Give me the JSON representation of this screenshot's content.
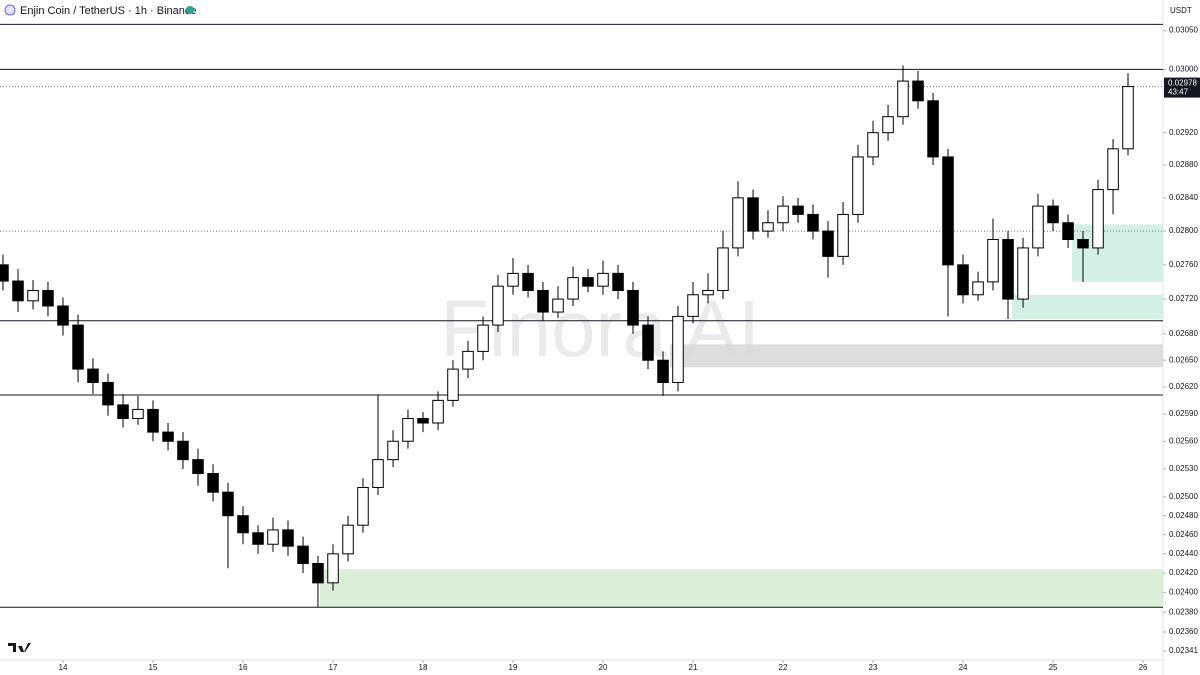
{
  "header": {
    "title": "Enjin Coin / TetherUS · 1h · Binance",
    "currency": "USDT",
    "watermark": "Finora AI"
  },
  "chart_data": {
    "type": "candlestick",
    "log_scale": true,
    "up_color": "#ffffff",
    "down_color": "#000000",
    "edge_color": "#000000",
    "xlim": [
      13.3,
      26.222
    ],
    "xticks": [
      14,
      15,
      16,
      17,
      18,
      19,
      20,
      21,
      22,
      23,
      24,
      25,
      26
    ],
    "ylim": [
      0.02332,
      0.0309
    ],
    "yticks": [
      {
        "value": 0.0305,
        "label": "0.03050"
      },
      {
        "value": 0.03,
        "label": "0.03000"
      },
      {
        "value": 0.0292,
        "label": "0.02920"
      },
      {
        "value": 0.0288,
        "label": "0.02880"
      },
      {
        "value": 0.0284,
        "label": "0.02840"
      },
      {
        "value": 0.028,
        "label": "0.02800"
      },
      {
        "value": 0.0276,
        "label": "0.02760"
      },
      {
        "value": 0.0272,
        "label": "0.02720"
      },
      {
        "value": 0.0268,
        "label": "0.02680"
      },
      {
        "value": 0.0265,
        "label": "0.02650"
      },
      {
        "value": 0.0262,
        "label": "0.02620"
      },
      {
        "value": 0.0259,
        "label": "0.02590"
      },
      {
        "value": 0.0256,
        "label": "0.02560"
      },
      {
        "value": 0.0253,
        "label": "0.02530"
      },
      {
        "value": 0.025,
        "label": "0.02500"
      },
      {
        "value": 0.0248,
        "label": "0.02480"
      },
      {
        "value": 0.0246,
        "label": "0.02460"
      },
      {
        "value": 0.0244,
        "label": "0.02440"
      },
      {
        "value": 0.0242,
        "label": "0.02420"
      },
      {
        "value": 0.024,
        "label": "0.02400"
      },
      {
        "value": 0.0238,
        "label": "0.02380"
      },
      {
        "value": 0.0236,
        "label": "0.02360"
      },
      {
        "value": 0.02341,
        "label": "0.02341"
      }
    ],
    "x": [
      13.333,
      13.5,
      13.667,
      13.833,
      14,
      14.167,
      14.333,
      14.5,
      14.667,
      14.833,
      15,
      15.167,
      15.333,
      15.5,
      15.667,
      15.833,
      16,
      16.167,
      16.333,
      16.5,
      16.667,
      16.833,
      17,
      17.167,
      17.333,
      17.5,
      17.667,
      17.833,
      18,
      18.167,
      18.333,
      18.5,
      18.667,
      18.833,
      19,
      19.167,
      19.333,
      19.5,
      19.667,
      19.833,
      20,
      20.167,
      20.333,
      20.5,
      20.667,
      20.833,
      21,
      21.167,
      21.333,
      21.5,
      21.667,
      21.833,
      22,
      22.167,
      22.333,
      22.5,
      22.667,
      22.833,
      23,
      23.167,
      23.333,
      23.5,
      23.667,
      23.833,
      24,
      24.167,
      24.333,
      24.5,
      24.667,
      24.833,
      25,
      25.167,
      25.333,
      25.5,
      25.667,
      25.833
    ],
    "open": [
      0.0276,
      0.02741,
      0.02718,
      0.0273,
      0.02712,
      0.0269,
      0.0264,
      0.02625,
      0.026,
      0.02585,
      0.02595,
      0.0257,
      0.0256,
      0.0254,
      0.02525,
      0.02505,
      0.0248,
      0.02462,
      0.0245,
      0.02465,
      0.02448,
      0.0243,
      0.0241,
      0.0244,
      0.0247,
      0.0251,
      0.0254,
      0.0256,
      0.02585,
      0.0258,
      0.02605,
      0.0264,
      0.0266,
      0.0269,
      0.02735,
      0.0275,
      0.0273,
      0.02705,
      0.0272,
      0.02745,
      0.02735,
      0.0275,
      0.0273,
      0.0269,
      0.0265,
      0.02625,
      0.027,
      0.02725,
      0.0273,
      0.0278,
      0.0284,
      0.028,
      0.0281,
      0.0283,
      0.0282,
      0.028,
      0.0277,
      0.0282,
      0.0289,
      0.0292,
      0.0294,
      0.02985,
      0.0296,
      0.0289,
      0.0276,
      0.02725,
      0.0274,
      0.0279,
      0.0272,
      0.0278,
      0.0283,
      0.0281,
      0.0279,
      0.0278,
      0.0285,
      0.029
    ],
    "high": [
      0.02772,
      0.02755,
      0.02742,
      0.0274,
      0.02722,
      0.02702,
      0.02652,
      0.02635,
      0.02612,
      0.0261,
      0.02605,
      0.0258,
      0.0257,
      0.02552,
      0.02535,
      0.02515,
      0.0249,
      0.0247,
      0.02478,
      0.02475,
      0.02458,
      0.02438,
      0.0245,
      0.0248,
      0.0252,
      0.02611,
      0.02572,
      0.02595,
      0.02592,
      0.02615,
      0.0265,
      0.02672,
      0.027,
      0.02748,
      0.02768,
      0.0276,
      0.0274,
      0.02735,
      0.02758,
      0.02755,
      0.02765,
      0.0276,
      0.0274,
      0.027,
      0.0266,
      0.02712,
      0.0274,
      0.0275,
      0.028,
      0.0286,
      0.0285,
      0.02825,
      0.02842,
      0.0284,
      0.02832,
      0.02812,
      0.02835,
      0.02905,
      0.02935,
      0.02955,
      0.03005,
      0.02998,
      0.0297,
      0.029,
      0.02772,
      0.02752,
      0.02815,
      0.028,
      0.02792,
      0.02845,
      0.02838,
      0.0282,
      0.028,
      0.02862,
      0.02912,
      0.02995
    ],
    "low": [
      0.0273,
      0.02705,
      0.02708,
      0.027,
      0.02678,
      0.02625,
      0.02612,
      0.02588,
      0.02575,
      0.02578,
      0.0256,
      0.0255,
      0.0253,
      0.02512,
      0.02495,
      0.02425,
      0.0245,
      0.0244,
      0.02442,
      0.02438,
      0.0242,
      0.02385,
      0.02402,
      0.02432,
      0.02462,
      0.02502,
      0.02532,
      0.02552,
      0.0257,
      0.02572,
      0.02598,
      0.0263,
      0.0265,
      0.02682,
      0.02725,
      0.02722,
      0.02695,
      0.02698,
      0.02712,
      0.02728,
      0.02725,
      0.0272,
      0.0268,
      0.0264,
      0.0261,
      0.02615,
      0.02692,
      0.02715,
      0.0272,
      0.0277,
      0.0279,
      0.02792,
      0.028,
      0.0281,
      0.0279,
      0.02745,
      0.0276,
      0.0281,
      0.0288,
      0.0291,
      0.0293,
      0.0295,
      0.0288,
      0.027,
      0.02715,
      0.02718,
      0.0273,
      0.02697,
      0.0271,
      0.0277,
      0.028,
      0.0278,
      0.0274,
      0.02772,
      0.0282,
      0.02892
    ],
    "close": [
      0.02741,
      0.02718,
      0.0273,
      0.02712,
      0.0269,
      0.0264,
      0.02625,
      0.026,
      0.02585,
      0.02595,
      0.0257,
      0.0256,
      0.0254,
      0.02525,
      0.02505,
      0.0248,
      0.02462,
      0.0245,
      0.02465,
      0.02448,
      0.0243,
      0.0241,
      0.0244,
      0.0247,
      0.0251,
      0.0254,
      0.0256,
      0.02585,
      0.0258,
      0.02605,
      0.0264,
      0.0266,
      0.0269,
      0.02735,
      0.0275,
      0.0273,
      0.02705,
      0.0272,
      0.02745,
      0.02735,
      0.0275,
      0.0273,
      0.0269,
      0.0265,
      0.02625,
      0.027,
      0.02725,
      0.0273,
      0.0278,
      0.0284,
      0.028,
      0.0281,
      0.0283,
      0.0282,
      0.028,
      0.0277,
      0.0282,
      0.0289,
      0.0292,
      0.0294,
      0.02985,
      0.0296,
      0.0289,
      0.0276,
      0.02725,
      0.0274,
      0.0279,
      0.0272,
      0.0278,
      0.0283,
      0.0281,
      0.0279,
      0.0278,
      0.0285,
      0.029,
      0.02978
    ],
    "levels": [
      0.03058,
      0.03,
      0.02695,
      0.02611,
      0.02385
    ],
    "dotted_levels": [
      0.028
    ],
    "zones": [
      {
        "low": 0.02642,
        "high": 0.02668,
        "from": 20.744,
        "color": "#d9d9d9"
      },
      {
        "low": 0.02385,
        "high": 0.02424,
        "from": 16.856,
        "color": "#d6ecd4"
      },
      {
        "low": 0.0274,
        "high": 0.02808,
        "from": 25.211,
        "color": "#cfeee2"
      },
      {
        "low": 0.02697,
        "high": 0.02725,
        "from": 24.544,
        "color": "#cfeee2"
      }
    ],
    "price_label": {
      "value": 0.02978,
      "label": "0.02978",
      "countdown": "43:47",
      "color": "#131722"
    }
  }
}
